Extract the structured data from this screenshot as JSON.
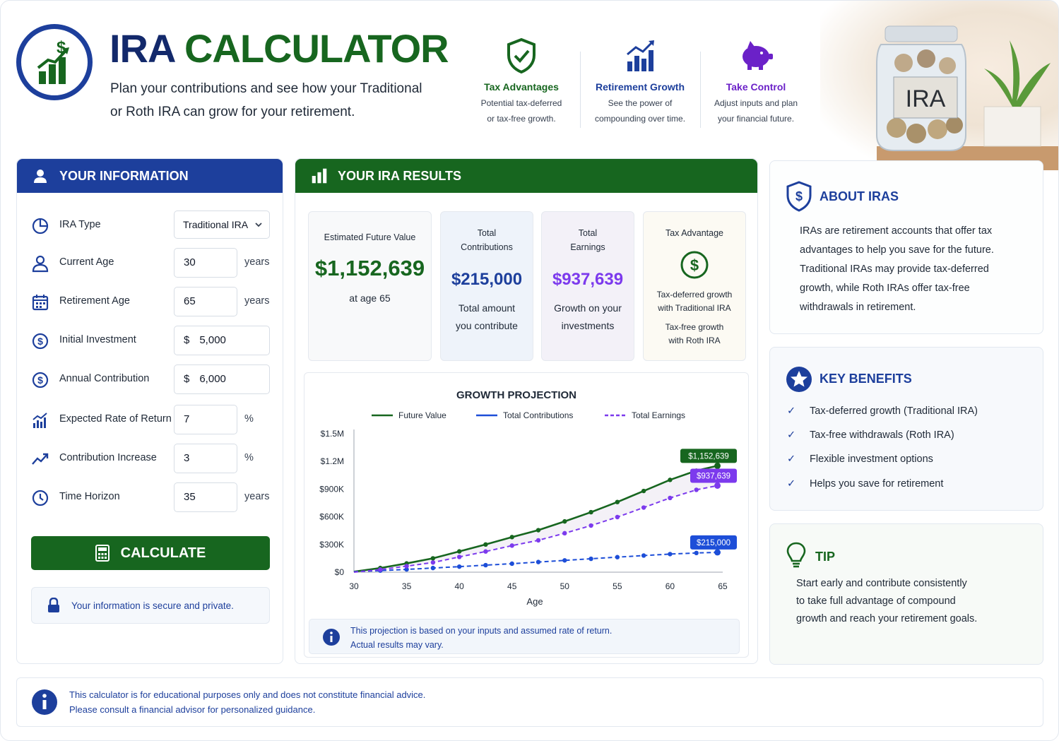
{
  "header": {
    "title_part1": "IRA",
    "title_part2": "CALCULATOR",
    "subtitle": "Plan your contributions and see how your Traditional or Roth IRA can grow for your retirement.",
    "features": [
      {
        "icon": "shield-check-icon",
        "title": "Tax Advantages",
        "desc1": "Potential tax-deferred",
        "desc2": "or tax-free growth.",
        "color": "#17661f"
      },
      {
        "icon": "growth-chart-icon",
        "title": "Retirement Growth",
        "desc1": "See the power of",
        "desc2": "compounding over time.",
        "color": "#1d3f9c"
      },
      {
        "icon": "piggy-bank-icon",
        "title": "Take Control",
        "desc1": "Adjust inputs and plan",
        "desc2": "your financial future.",
        "color": "#6b21c8"
      }
    ],
    "jar_label": "IRA"
  },
  "info": {
    "heading": "YOUR INFORMATION",
    "ira_type_label": "IRA Type",
    "ira_type_value": "Traditional IRA",
    "current_age_label": "Current Age",
    "current_age_value": "30",
    "retirement_age_label": "Retirement Age",
    "retirement_age_value": "65",
    "initial_investment_label": "Initial Investment",
    "initial_investment_value": "5,000",
    "annual_contribution_label": "Annual Contribution",
    "annual_contribution_value": "6,000",
    "rate_label": "Expected Rate of Return",
    "rate_value": "7",
    "increase_label": "Contribution Increase",
    "increase_value": "3",
    "horizon_label": "Time Horizon",
    "horizon_value": "35",
    "unit_years": "years",
    "unit_percent": "%",
    "currency": "$",
    "calculate_label": "CALCULATE",
    "secure_text": "Your information is secure and private."
  },
  "results": {
    "heading": "YOUR IRA RESULTS",
    "future_label": "Estimated Future Value",
    "future_value": "$1,152,639",
    "future_desc": "at age 65",
    "contrib_label1": "Total",
    "contrib_label2": "Contributions",
    "contrib_value": "$215,000",
    "contrib_desc1": "Total amount",
    "contrib_desc2": "you contribute",
    "earnings_label1": "Total",
    "earnings_label2": "Earnings",
    "earnings_value": "$937,639",
    "earnings_desc1": "Growth on your",
    "earnings_desc2": "investments",
    "tax_label": "Tax Advantage",
    "tax_desc1": "Tax-deferred growth",
    "tax_desc2": "with Traditional IRA",
    "tax_desc3": "Tax-free growth",
    "tax_desc4": "with Roth IRA",
    "chart_note1": "This projection is based on your inputs and assumed rate of return.",
    "chart_note2": "Actual results may vary."
  },
  "chart_data": {
    "type": "line",
    "title": "GROWTH PROJECTION",
    "xlabel": "Age",
    "ylabel": "",
    "x": [
      30,
      32.5,
      35,
      37.5,
      40,
      42.5,
      45,
      47.5,
      50,
      52.5,
      55,
      57.5,
      60,
      62.5,
      64.5
    ],
    "xlim": [
      30,
      65
    ],
    "ylim": [
      0,
      1500000
    ],
    "x_ticks": [
      "30",
      "35",
      "40",
      "45",
      "50",
      "55",
      "60",
      "65"
    ],
    "x_tick_values": [
      30,
      35,
      40,
      45,
      50,
      55,
      60,
      65
    ],
    "y_ticks": [
      "$0",
      "$300K",
      "$600K",
      "$900K",
      "$1.2M",
      "$1.5M"
    ],
    "y_tick_values": [
      0,
      300000,
      600000,
      900000,
      1200000,
      1500000
    ],
    "legend": "top",
    "grid": false,
    "series": [
      {
        "name": "Future Value",
        "color": "#17661f",
        "style": "solid",
        "values": [
          5000,
          45000,
          95000,
          150000,
          225000,
          300000,
          380000,
          455000,
          550000,
          650000,
          760000,
          880000,
          1000000,
          1100000,
          1152639
        ]
      },
      {
        "name": "Total Contributions",
        "color": "#1d4ed8",
        "style": "dashed",
        "values": [
          5000,
          17000,
          30000,
          45000,
          60000,
          76000,
          92000,
          110000,
          128000,
          145000,
          163000,
          180000,
          196000,
          208000,
          215000
        ]
      },
      {
        "name": "Total Earnings",
        "color": "#7c3aed",
        "style": "dashed",
        "values": [
          0,
          28000,
          65000,
          105000,
          165000,
          224000,
          288000,
          345000,
          422000,
          505000,
          597000,
          700000,
          804000,
          892000,
          937639
        ]
      }
    ],
    "annotations": [
      {
        "series": 0,
        "text": "$1,152,639",
        "color": "#17661f"
      },
      {
        "series": 2,
        "text": "$937,639",
        "color": "#7c3aed"
      },
      {
        "series": 1,
        "text": "$215,000",
        "color": "#1d4ed8"
      }
    ]
  },
  "about": {
    "heading": "ABOUT IRAS",
    "lines": [
      "IRAs are retirement accounts that offer tax",
      "advantages to help you save for the future.",
      "Traditional IRAs may provide tax-deferred",
      "growth, while Roth IRAs offer tax-free",
      "withdrawals in retirement."
    ]
  },
  "benefits": {
    "heading": "KEY BENEFITS",
    "items": [
      "Tax-deferred growth (Traditional IRA)",
      "Tax-free withdrawals (Roth IRA)",
      "Flexible investment options",
      "Helps you save for retirement"
    ]
  },
  "tip": {
    "heading": "TIP",
    "lines": [
      "Start early and contribute consistently",
      "to take full advantage of compound",
      "growth and reach your retirement goals."
    ]
  },
  "footer": {
    "line1": "This calculator is for educational purposes only and does not constitute financial advice.",
    "line2": "Please consult a financial advisor for personalized guidance."
  },
  "colors": {
    "navy": "#1d3f9c",
    "green": "#17661f",
    "purple": "#6b21c8",
    "blue": "#1d4ed8"
  }
}
